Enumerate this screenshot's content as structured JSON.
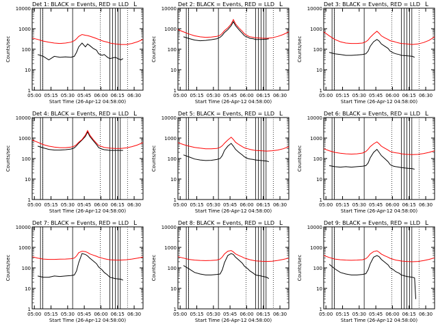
{
  "panel_defaults": {
    "ylabel": "Counts/sec",
    "xlabel": "Start Time (26-Apr-12 04:58:00)",
    "x_range_minutes": [
      0,
      100
    ],
    "y_range": [
      1,
      10000
    ],
    "y_scale": "log",
    "x_tick_labels": [
      "05:00",
      "05:15",
      "05:30",
      "05:45",
      "06:00",
      "06:15",
      "06:30"
    ],
    "y_tick_labels": [
      "1",
      "10",
      "100",
      "1000",
      "10000"
    ],
    "solid_vlines": [
      7.5,
      9.5,
      36.5,
      70,
      72.5,
      75,
      77.5,
      79.5
    ],
    "dotted_vlines": [
      9.5,
      61.5,
      86
    ],
    "legend_mark": "L",
    "colors": {
      "events": "#000000",
      "lld": "#ff0000"
    }
  },
  "chart_data": [
    {
      "type": "line",
      "title": "Det 1: BLACK = Events, RED = LLD",
      "series": [
        {
          "name": "Events",
          "x": [
            5,
            10,
            15,
            20,
            25,
            30,
            35,
            38,
            40,
            42,
            45,
            48,
            50,
            52,
            55,
            58,
            60,
            63,
            65,
            68,
            70,
            75,
            80,
            82
          ],
          "y": [
            55,
            45,
            30,
            45,
            40,
            42,
            40,
            45,
            70,
            130,
            200,
            130,
            180,
            150,
            110,
            90,
            60,
            50,
            55,
            40,
            35,
            40,
            30,
            35
          ]
        },
        {
          "name": "LLD",
          "x": [
            0,
            5,
            10,
            15,
            20,
            25,
            30,
            35,
            38,
            40,
            42,
            45,
            48,
            50,
            52,
            55,
            58,
            60,
            63,
            65,
            68,
            70,
            75,
            80,
            85,
            90,
            95,
            100
          ],
          "y": [
            350,
            300,
            250,
            220,
            200,
            190,
            200,
            220,
            260,
            320,
            420,
            520,
            480,
            460,
            430,
            380,
            330,
            300,
            260,
            240,
            220,
            200,
            180,
            170,
            170,
            190,
            230,
            300
          ]
        }
      ]
    },
    {
      "type": "line",
      "title": "Det 2: BLACK = Events, RED = LLD",
      "series": [
        {
          "name": "Events",
          "x": [
            5,
            10,
            15,
            20,
            25,
            30,
            35,
            38,
            40,
            42,
            45,
            48,
            50,
            52,
            55,
            58,
            60,
            63,
            65,
            68,
            70,
            75,
            80,
            82
          ],
          "y": [
            400,
            330,
            280,
            260,
            270,
            290,
            320,
            380,
            480,
            650,
            900,
            1400,
            2200,
            1400,
            900,
            600,
            450,
            380,
            340,
            320,
            300,
            300,
            310,
            320
          ]
        },
        {
          "name": "LLD",
          "x": [
            0,
            5,
            10,
            15,
            20,
            25,
            30,
            35,
            38,
            40,
            42,
            45,
            48,
            50,
            52,
            55,
            58,
            60,
            63,
            65,
            68,
            70,
            75,
            80,
            85,
            90,
            95,
            100
          ],
          "y": [
            900,
            700,
            550,
            450,
            400,
            380,
            390,
            420,
            480,
            600,
            800,
            1100,
            1700,
            2800,
            1700,
            1100,
            750,
            560,
            450,
            400,
            380,
            360,
            350,
            340,
            360,
            420,
            520,
            700
          ]
        }
      ]
    },
    {
      "type": "line",
      "title": "Det 3: BLACK = Events, RED = LLD",
      "series": [
        {
          "name": "Events",
          "x": [
            5,
            10,
            15,
            20,
            25,
            30,
            35,
            38,
            40,
            42,
            45,
            48,
            50,
            52,
            55,
            58,
            60,
            63,
            65,
            68,
            70,
            75,
            80,
            82
          ],
          "y": [
            70,
            60,
            55,
            50,
            50,
            52,
            55,
            60,
            80,
            140,
            230,
            300,
            250,
            180,
            140,
            110,
            80,
            65,
            60,
            55,
            50,
            48,
            45,
            40
          ]
        },
        {
          "name": "LLD",
          "x": [
            0,
            5,
            10,
            15,
            20,
            25,
            30,
            35,
            38,
            40,
            42,
            45,
            48,
            50,
            52,
            55,
            58,
            60,
            63,
            65,
            68,
            70,
            75,
            80,
            85,
            90,
            95,
            100
          ],
          "y": [
            700,
            450,
            300,
            230,
            200,
            190,
            190,
            200,
            230,
            280,
            380,
            550,
            750,
            600,
            450,
            360,
            300,
            260,
            240,
            220,
            200,
            190,
            180,
            170,
            180,
            210,
            270,
            400
          ]
        }
      ]
    },
    {
      "type": "line",
      "title": "Det 4: BLACK = Events, RED = LLD",
      "series": [
        {
          "name": "Events",
          "x": [
            5,
            10,
            15,
            20,
            25,
            30,
            35,
            38,
            40,
            42,
            45,
            48,
            50,
            52,
            55,
            58,
            60,
            63,
            65,
            68,
            70,
            75,
            80,
            82
          ],
          "y": [
            400,
            330,
            280,
            260,
            260,
            270,
            290,
            330,
            420,
            560,
            800,
            1200,
            2000,
            1200,
            750,
            480,
            340,
            290,
            270,
            260,
            250,
            250,
            250,
            250
          ]
        },
        {
          "name": "LLD",
          "x": [
            0,
            5,
            10,
            15,
            20,
            25,
            30,
            35,
            38,
            40,
            42,
            45,
            48,
            50,
            52,
            55,
            58,
            60,
            63,
            65,
            68,
            70,
            75,
            80,
            85,
            90,
            95,
            100
          ],
          "y": [
            800,
            620,
            480,
            400,
            360,
            340,
            340,
            360,
            400,
            480,
            620,
            850,
            1400,
            2300,
            1400,
            850,
            560,
            430,
            380,
            350,
            330,
            320,
            310,
            310,
            330,
            380,
            460,
            600
          ]
        }
      ]
    },
    {
      "type": "line",
      "title": "Det 5: BLACK = Events, RED = LLD",
      "series": [
        {
          "name": "Events",
          "x": [
            5,
            10,
            15,
            20,
            25,
            30,
            35,
            38,
            40,
            42,
            45,
            48,
            50,
            52,
            55,
            58,
            60,
            63,
            65,
            68,
            70,
            75,
            80,
            82
          ],
          "y": [
            150,
            120,
            95,
            85,
            80,
            82,
            90,
            100,
            140,
            250,
            400,
            550,
            400,
            280,
            200,
            150,
            120,
            100,
            95,
            90,
            85,
            80,
            75,
            70
          ]
        },
        {
          "name": "LLD",
          "x": [
            0,
            5,
            10,
            15,
            20,
            25,
            30,
            35,
            38,
            40,
            42,
            45,
            48,
            50,
            52,
            55,
            58,
            60,
            63,
            65,
            68,
            70,
            75,
            80,
            85,
            90,
            95,
            100
          ],
          "y": [
            600,
            480,
            400,
            350,
            320,
            300,
            300,
            310,
            350,
            420,
            560,
            800,
            1100,
            850,
            620,
            480,
            380,
            330,
            300,
            280,
            260,
            250,
            240,
            230,
            240,
            260,
            300,
            380
          ]
        }
      ]
    },
    {
      "type": "line",
      "title": "Det 6: BLACK = Events, RED = LLD",
      "series": [
        {
          "name": "Events",
          "x": [
            5,
            10,
            15,
            20,
            25,
            30,
            35,
            38,
            40,
            42,
            45,
            48,
            50,
            52,
            55,
            58,
            60,
            63,
            65,
            68,
            70,
            75,
            80,
            82
          ],
          "y": [
            45,
            40,
            38,
            40,
            38,
            40,
            42,
            45,
            60,
            110,
            200,
            280,
            200,
            140,
            100,
            70,
            50,
            42,
            40,
            38,
            36,
            34,
            32,
            30
          ]
        },
        {
          "name": "LLD",
          "x": [
            0,
            5,
            10,
            15,
            20,
            25,
            30,
            35,
            38,
            40,
            42,
            45,
            48,
            50,
            52,
            55,
            58,
            60,
            63,
            65,
            68,
            70,
            75,
            80,
            85,
            90,
            95,
            100
          ],
          "y": [
            300,
            240,
            200,
            180,
            170,
            165,
            170,
            185,
            220,
            280,
            380,
            520,
            650,
            520,
            400,
            320,
            260,
            220,
            200,
            190,
            180,
            170,
            160,
            155,
            160,
            175,
            200,
            240
          ]
        }
      ]
    },
    {
      "type": "line",
      "title": "Det 7: BLACK = Events, RED = LLD",
      "series": [
        {
          "name": "Events",
          "x": [
            5,
            10,
            15,
            20,
            25,
            30,
            35,
            38,
            40,
            42,
            45,
            48,
            50,
            52,
            55,
            58,
            60,
            63,
            65,
            68,
            70,
            75,
            80,
            82
          ],
          "y": [
            40,
            35,
            35,
            40,
            38,
            40,
            42,
            45,
            70,
            180,
            500,
            450,
            380,
            300,
            220,
            160,
            110,
            80,
            60,
            45,
            35,
            30,
            28,
            25
          ]
        },
        {
          "name": "LLD",
          "x": [
            0,
            5,
            10,
            15,
            20,
            25,
            30,
            35,
            38,
            40,
            42,
            45,
            48,
            50,
            52,
            55,
            58,
            60,
            63,
            65,
            68,
            70,
            75,
            80,
            85,
            90,
            95,
            100
          ],
          "y": [
            350,
            300,
            270,
            260,
            260,
            265,
            270,
            280,
            300,
            380,
            550,
            650,
            620,
            560,
            480,
            420,
            370,
            330,
            300,
            280,
            260,
            250,
            240,
            240,
            250,
            270,
            300,
            340
          ]
        }
      ]
    },
    {
      "type": "line",
      "title": "Det 8: BLACK = Events, RED = LLD",
      "series": [
        {
          "name": "Events",
          "x": [
            5,
            10,
            15,
            20,
            25,
            30,
            35,
            38,
            40,
            42,
            45,
            48,
            50,
            52,
            55,
            58,
            60,
            63,
            65,
            68,
            70,
            75,
            80,
            82
          ],
          "y": [
            130,
            90,
            60,
            50,
            45,
            45,
            48,
            50,
            80,
            180,
            400,
            500,
            450,
            330,
            240,
            170,
            120,
            90,
            70,
            55,
            45,
            40,
            35,
            30
          ]
        },
        {
          "name": "LLD",
          "x": [
            0,
            5,
            10,
            15,
            20,
            25,
            30,
            35,
            38,
            40,
            42,
            45,
            48,
            50,
            52,
            55,
            58,
            60,
            63,
            65,
            68,
            70,
            75,
            80,
            85,
            90,
            95,
            100
          ],
          "y": [
            350,
            300,
            260,
            240,
            230,
            225,
            230,
            240,
            270,
            340,
            480,
            650,
            700,
            600,
            480,
            400,
            340,
            300,
            270,
            250,
            230,
            220,
            210,
            205,
            210,
            230,
            260,
            300
          ]
        }
      ]
    },
    {
      "type": "line",
      "title": "Det 9: BLACK = Events, RED = LLD",
      "series": [
        {
          "name": "Events",
          "x": [
            5,
            10,
            15,
            20,
            25,
            30,
            35,
            38,
            40,
            42,
            45,
            48,
            50,
            52,
            55,
            58,
            60,
            63,
            65,
            68,
            70,
            75,
            80,
            82,
            83
          ],
          "y": [
            150,
            90,
            60,
            50,
            45,
            45,
            48,
            52,
            80,
            160,
            330,
            400,
            350,
            260,
            190,
            140,
            100,
            80,
            65,
            55,
            45,
            38,
            35,
            32,
            3
          ]
        },
        {
          "name": "LLD",
          "x": [
            0,
            5,
            10,
            15,
            20,
            25,
            30,
            35,
            38,
            40,
            42,
            45,
            48,
            50,
            52,
            55,
            58,
            60,
            63,
            65,
            68,
            70,
            75,
            80,
            85,
            90,
            95,
            100
          ],
          "y": [
            400,
            320,
            270,
            250,
            240,
            235,
            240,
            250,
            280,
            350,
            480,
            620,
            680,
            580,
            470,
            390,
            330,
            290,
            260,
            240,
            225,
            215,
            205,
            200,
            205,
            225,
            260,
            310
          ]
        }
      ]
    }
  ]
}
